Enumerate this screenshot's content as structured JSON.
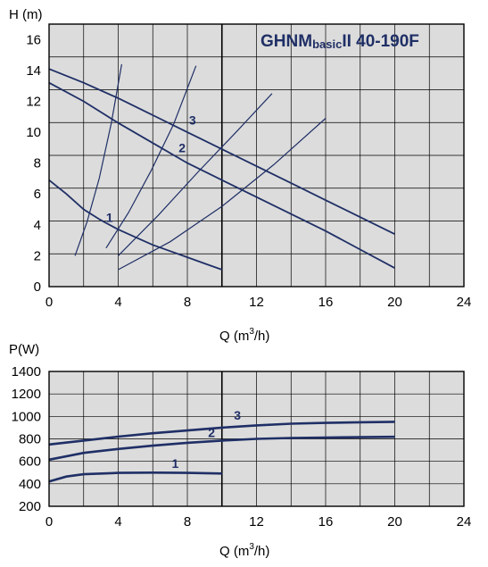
{
  "colors": {
    "plot_bg": "#dcdcdc",
    "grid": "#000000",
    "curve": "#1f2f66",
    "title": "#1f2f66"
  },
  "chart_data": [
    {
      "type": "line",
      "title": "GHNMbasicII 40-190F",
      "title_parts": {
        "main": "GHNM",
        "sub": "basic",
        "tail": "II 40-190F"
      },
      "ylabel": "H (m)",
      "xlabel": "Q (m³/h)",
      "xlabel_parts": {
        "base": "Q (m",
        "sup": "3",
        "tail": "/h)"
      },
      "xlim": [
        0,
        24
      ],
      "ylim": [
        0,
        17
      ],
      "x_ticks": [
        0,
        4,
        8,
        12,
        16,
        20,
        24
      ],
      "x_tick_labels": [
        "0",
        "4",
        "8",
        "12",
        "16",
        "20",
        "24"
      ],
      "y_ticks": [
        0,
        2,
        4,
        6,
        8,
        10,
        12,
        14,
        16
      ],
      "y_tick_labels": [
        "0",
        "2",
        "4",
        "6",
        "8",
        "10",
        "12",
        "14",
        "16"
      ],
      "series": [
        {
          "name": "1",
          "x": [
            0,
            1,
            2,
            3,
            4,
            5,
            6,
            7,
            8,
            9,
            10
          ],
          "y": [
            6.9,
            6.0,
            5.0,
            4.3,
            3.7,
            3.2,
            2.7,
            2.3,
            1.9,
            1.5,
            1.1
          ]
        },
        {
          "name": "2",
          "x": [
            0,
            2,
            4,
            6,
            8,
            10,
            12,
            14,
            16,
            18,
            20
          ],
          "y": [
            13.2,
            12.0,
            10.6,
            9.3,
            8.0,
            6.9,
            5.8,
            4.7,
            3.6,
            2.4,
            1.2
          ]
        },
        {
          "name": "3",
          "x": [
            0,
            2,
            4,
            6,
            8,
            10,
            12,
            14,
            16,
            18,
            20
          ],
          "y": [
            14.1,
            13.2,
            12.2,
            11.1,
            10.0,
            8.9,
            7.8,
            6.7,
            5.6,
            4.5,
            3.4
          ]
        }
      ],
      "system_curves": [
        {
          "x": [
            1.5,
            2.2,
            2.9,
            3.6,
            4.2
          ],
          "y": [
            2.0,
            4.2,
            7.0,
            10.6,
            14.4
          ]
        },
        {
          "x": [
            3.3,
            4.6,
            5.9,
            7.2,
            8.5
          ],
          "y": [
            2.5,
            4.8,
            7.5,
            10.5,
            14.3
          ]
        },
        {
          "x": [
            4.0,
            6.3,
            8.6,
            10.9,
            12.9
          ],
          "y": [
            2.0,
            4.6,
            7.4,
            10.1,
            12.5
          ]
        },
        {
          "x": [
            4.0,
            7.0,
            10.0,
            13.0,
            16.0
          ],
          "y": [
            1.1,
            2.9,
            5.2,
            7.9,
            10.9
          ]
        }
      ],
      "label_positions": [
        {
          "name": "1",
          "x": 3.5,
          "y": 4.2
        },
        {
          "name": "2",
          "x": 7.7,
          "y": 8.7
        },
        {
          "name": "3",
          "x": 8.3,
          "y": 10.5
        }
      ],
      "grid": true,
      "legend": "none"
    },
    {
      "type": "line",
      "title": "",
      "ylabel": "P(W)",
      "xlabel": "Q (m³/h)",
      "xlabel_parts": {
        "base": "Q (m",
        "sup": "3",
        "tail": "/h)"
      },
      "xlim": [
        0,
        24
      ],
      "ylim": [
        200,
        1400
      ],
      "x_ticks": [
        0,
        4,
        8,
        12,
        16,
        20,
        24
      ],
      "x_tick_labels": [
        "0",
        "4",
        "8",
        "12",
        "16",
        "20",
        "24"
      ],
      "y_ticks": [
        200,
        400,
        600,
        800,
        1000,
        1200,
        1400
      ],
      "y_tick_labels": [
        "200",
        "400",
        "600",
        "800",
        "1000",
        "1200",
        "1400"
      ],
      "series": [
        {
          "name": "1",
          "x": [
            0,
            1,
            2,
            4,
            6,
            8,
            10
          ],
          "y": [
            420,
            465,
            485,
            497,
            500,
            497,
            492
          ]
        },
        {
          "name": "2",
          "x": [
            0,
            2,
            4,
            6,
            8,
            10,
            12,
            14,
            16,
            18,
            20
          ],
          "y": [
            615,
            675,
            710,
            740,
            765,
            785,
            800,
            808,
            812,
            815,
            818
          ]
        },
        {
          "name": "3",
          "x": [
            0,
            2,
            4,
            6,
            8,
            10,
            12,
            14,
            16,
            18,
            20
          ],
          "y": [
            750,
            785,
            820,
            850,
            875,
            900,
            920,
            935,
            942,
            948,
            952
          ]
        }
      ],
      "label_positions": [
        {
          "name": "1",
          "x": 7.3,
          "y": 540
        },
        {
          "name": "2",
          "x": 9.4,
          "y": 815
        },
        {
          "name": "3",
          "x": 10.9,
          "y": 970
        }
      ],
      "grid": true,
      "legend": "none"
    }
  ]
}
